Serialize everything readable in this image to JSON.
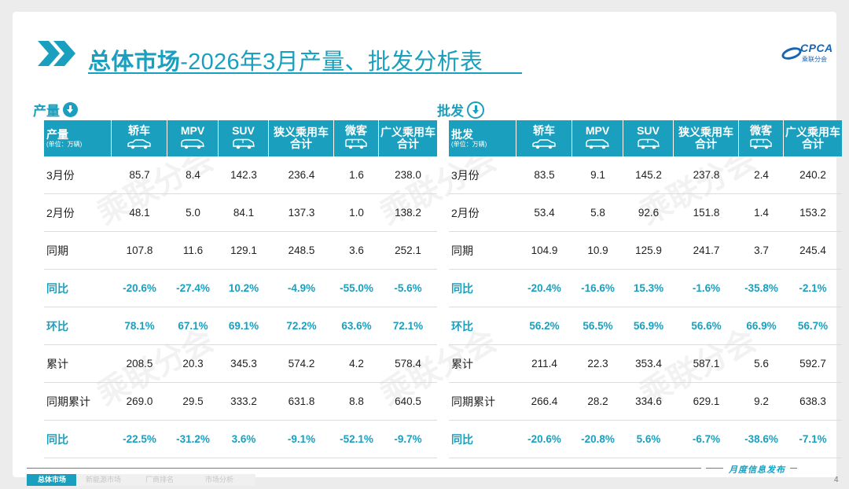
{
  "title": {
    "bold_part": "总体市场",
    "rest": "-2026年3月产量、批发分析表"
  },
  "logo": {
    "brand": "CPCA",
    "sub": "乘联分会"
  },
  "production": {
    "section_label": "产量",
    "row_header": "产量",
    "row_header_unit": "(单位：万辆)",
    "columns": [
      {
        "label": "轿车",
        "icon": "sedan-icon"
      },
      {
        "label": "MPV",
        "icon": "mpv-icon"
      },
      {
        "label": "SUV",
        "icon": "suv-icon"
      },
      {
        "label": "狭义乘用车\n合计",
        "icon": ""
      },
      {
        "label": "微客",
        "icon": "minivan-icon"
      },
      {
        "label": "广义乘用车\n合计",
        "icon": ""
      }
    ],
    "rows": [
      {
        "label": "3月份",
        "pct": false,
        "values": [
          "85.7",
          "8.4",
          "142.3",
          "236.4",
          "1.6",
          "238.0"
        ]
      },
      {
        "label": "2月份",
        "pct": false,
        "values": [
          "48.1",
          "5.0",
          "84.1",
          "137.3",
          "1.0",
          "138.2"
        ]
      },
      {
        "label": "同期",
        "pct": false,
        "values": [
          "107.8",
          "11.6",
          "129.1",
          "248.5",
          "3.6",
          "252.1"
        ]
      },
      {
        "label": "同比",
        "pct": true,
        "values": [
          "-20.6%",
          "-27.4%",
          "10.2%",
          "-4.9%",
          "-55.0%",
          "-5.6%"
        ]
      },
      {
        "label": "环比",
        "pct": true,
        "values": [
          "78.1%",
          "67.1%",
          "69.1%",
          "72.2%",
          "63.6%",
          "72.1%"
        ]
      },
      {
        "label": "累计",
        "pct": false,
        "values": [
          "208.5",
          "20.3",
          "345.3",
          "574.2",
          "4.2",
          "578.4"
        ]
      },
      {
        "label": "同期累计",
        "pct": false,
        "values": [
          "269.0",
          "29.5",
          "333.2",
          "631.8",
          "8.8",
          "640.5"
        ]
      },
      {
        "label": "同比",
        "pct": true,
        "values": [
          "-22.5%",
          "-31.2%",
          "3.6%",
          "-9.1%",
          "-52.1%",
          "-9.7%"
        ]
      }
    ]
  },
  "wholesale": {
    "section_label": "批发",
    "row_header": "批发",
    "row_header_unit": "(单位：万辆)",
    "columns": [
      {
        "label": "轿车",
        "icon": "sedan-icon"
      },
      {
        "label": "MPV",
        "icon": "mpv-icon"
      },
      {
        "label": "SUV",
        "icon": "suv-icon"
      },
      {
        "label": "狭义乘用车\n合计",
        "icon": ""
      },
      {
        "label": "微客",
        "icon": "minivan-icon"
      },
      {
        "label": "广义乘用车\n合计",
        "icon": ""
      }
    ],
    "rows": [
      {
        "label": "3月份",
        "pct": false,
        "values": [
          "83.5",
          "9.1",
          "145.2",
          "237.8",
          "2.4",
          "240.2"
        ]
      },
      {
        "label": "2月份",
        "pct": false,
        "values": [
          "53.4",
          "5.8",
          "92.6",
          "151.8",
          "1.4",
          "153.2"
        ]
      },
      {
        "label": "同期",
        "pct": false,
        "values": [
          "104.9",
          "10.9",
          "125.9",
          "241.7",
          "3.7",
          "245.4"
        ]
      },
      {
        "label": "同比",
        "pct": true,
        "values": [
          "-20.4%",
          "-16.6%",
          "15.3%",
          "-1.6%",
          "-35.8%",
          "-2.1%"
        ]
      },
      {
        "label": "环比",
        "pct": true,
        "values": [
          "56.2%",
          "56.5%",
          "56.9%",
          "56.6%",
          "66.9%",
          "56.7%"
        ]
      },
      {
        "label": "累计",
        "pct": false,
        "values": [
          "211.4",
          "22.3",
          "353.4",
          "587.1",
          "5.6",
          "592.7"
        ]
      },
      {
        "label": "同期累计",
        "pct": false,
        "values": [
          "266.4",
          "28.2",
          "334.6",
          "629.1",
          "9.2",
          "638.3"
        ]
      },
      {
        "label": "同比",
        "pct": true,
        "values": [
          "-20.6%",
          "-20.8%",
          "5.6%",
          "-6.7%",
          "-38.6%",
          "-7.1%"
        ]
      }
    ]
  },
  "footer": {
    "tabs": [
      {
        "label": "总体市场",
        "active": true
      },
      {
        "label": "新能源市场",
        "active": false
      },
      {
        "label": "厂商排名",
        "active": false
      },
      {
        "label": "市场分析",
        "active": false
      }
    ],
    "release": "月度信息发布",
    "page": "4"
  },
  "colors": {
    "accent": "#1aa0be",
    "brand": "#1565b5"
  }
}
